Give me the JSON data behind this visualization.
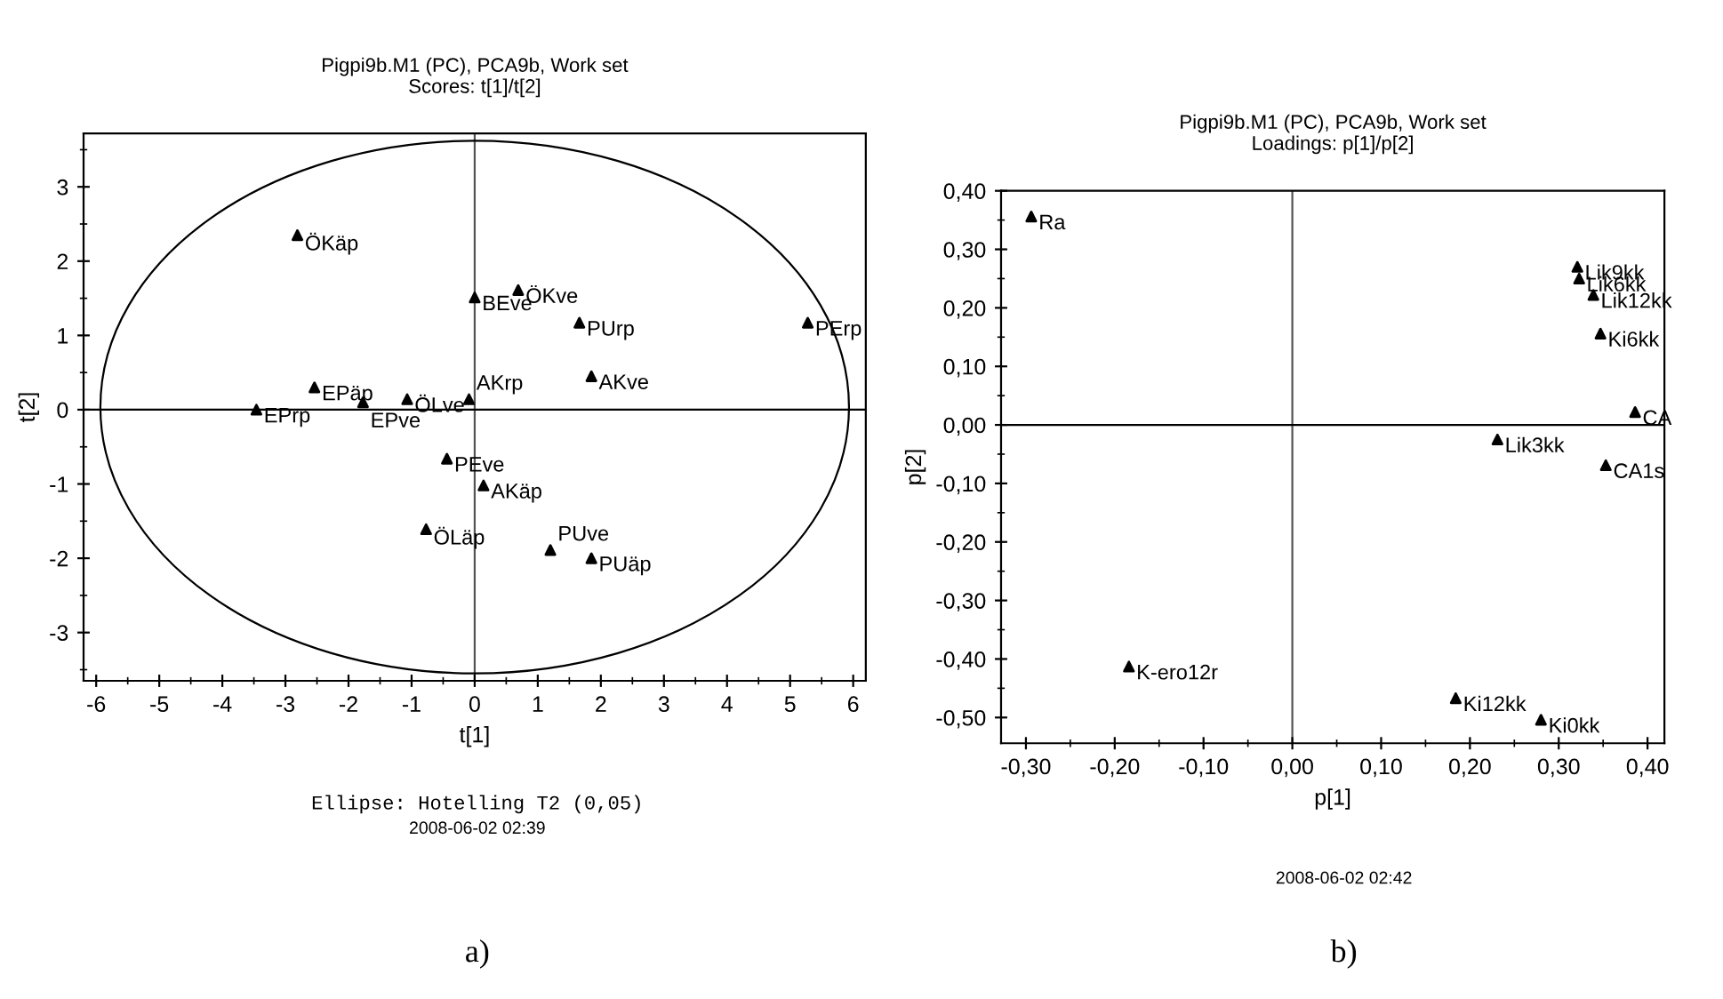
{
  "chart_data": [
    {
      "type": "scatter",
      "title": "Pigpi9b.M1 (PC), PCA9b, Work set",
      "subtitle": "Scores: t[1]/t[2]",
      "xlabel": "t[1]",
      "ylabel": "t[2]",
      "xlim": [
        -6.2,
        6.2
      ],
      "ylim": [
        -3.65,
        3.72
      ],
      "xticks": [
        -6,
        -5,
        -4,
        -3,
        -2,
        -1,
        0,
        1,
        2,
        3,
        4,
        5,
        6
      ],
      "yticks": [
        -3,
        -2,
        -1,
        0,
        1,
        2,
        3
      ],
      "grid": false,
      "marker": "triangle",
      "ref_lines": [
        {
          "axis": "x",
          "value": 0,
          "color": "#555555"
        },
        {
          "axis": "y",
          "value": 0,
          "color": "#000000"
        }
      ],
      "series": [
        {
          "type": "scatter",
          "color": "#000000",
          "x": [
            -2.81,
            0,
            0.69,
            1.66,
            5.28,
            1.85,
            -2.54,
            -3.46,
            -1.77,
            -1.07,
            -0.09,
            -0.44,
            0.14,
            -0.77,
            1.2,
            1.85
          ],
          "values": [
            2.35,
            1.51,
            1.61,
            1.17,
            1.17,
            0.45,
            0.3,
            0.0,
            0.1,
            0.14,
            0.14,
            -0.66,
            -1.02,
            -1.61,
            -1.89,
            -2.0
          ]
        }
      ],
      "annotations": [
        {
          "text": "ÖKäp",
          "x": -2.81,
          "y": 2.35
        },
        {
          "text": "BEve",
          "x": 0,
          "y": 1.51
        },
        {
          "text": "ÖKve",
          "x": 0.69,
          "y": 1.61
        },
        {
          "text": "PUrp",
          "x": 1.66,
          "y": 1.17
        },
        {
          "text": "PErp",
          "x": 5.28,
          "y": 1.17
        },
        {
          "text": "AKve",
          "x": 1.85,
          "y": 0.45
        },
        {
          "text": "EPäp",
          "x": -2.54,
          "y": 0.3
        },
        {
          "text": "EPrp",
          "x": -3.46,
          "y": 0.0
        },
        {
          "text": "EPve",
          "x": -1.77,
          "y": 0.1
        },
        {
          "text": "ÖLve",
          "x": -1.07,
          "y": 0.14
        },
        {
          "text": "AKrp",
          "x": -0.09,
          "y": 0.14
        },
        {
          "text": "PEve",
          "x": -0.44,
          "y": -0.66
        },
        {
          "text": "AKäp",
          "x": 0.14,
          "y": -1.02
        },
        {
          "text": "ÖLäp",
          "x": -0.77,
          "y": -1.61
        },
        {
          "text": "PUve",
          "x": 1.2,
          "y": -1.89
        },
        {
          "text": "PUäp",
          "x": 1.85,
          "y": -2.0
        },
        "Ellipse: Hotelling T2 (0,05)",
        "2008-06-02 02:39",
        "a)"
      ]
    },
    {
      "type": "scatter",
      "title": "Pigpi9b.M1 (PC), PCA9b, Work set",
      "subtitle": "Loadings: p[1]/p[2]",
      "xlabel": "p[1]",
      "ylabel": "p[2]",
      "xlim": [
        -0.328,
        0.419
      ],
      "ylim": [
        -0.544,
        0.4
      ],
      "xticks": [
        {
          "value": -0.3,
          "label": "-0,30"
        },
        {
          "value": -0.2,
          "label": "-0,20"
        },
        {
          "value": -0.1,
          "label": "-0,10"
        },
        {
          "value": 0,
          "label": "0,00"
        },
        {
          "value": 0.1,
          "label": "0,10"
        },
        {
          "value": 0.2,
          "label": "0,20"
        },
        {
          "value": 0.3,
          "label": "0,30"
        },
        {
          "value": 0.4,
          "label": "0,40"
        }
      ],
      "yticks": [
        {
          "value": -0.5,
          "label": "-0,50"
        },
        {
          "value": -0.4,
          "label": "-0,40"
        },
        {
          "value": -0.3,
          "label": "-0,30"
        },
        {
          "value": -0.2,
          "label": "-0,20"
        },
        {
          "value": -0.1,
          "label": "-0,10"
        },
        {
          "value": 0,
          "label": "0,00"
        },
        {
          "value": 0.1,
          "label": "0,10"
        },
        {
          "value": 0.2,
          "label": "0,20"
        },
        {
          "value": 0.3,
          "label": "0,30"
        },
        {
          "value": 0.4,
          "label": "0,40"
        }
      ],
      "grid": false,
      "marker": "triangle",
      "ref_lines": [
        {
          "axis": "x",
          "value": 0,
          "color": "#555555"
        },
        {
          "axis": "y",
          "value": 0,
          "color": "#000000"
        }
      ],
      "series": [
        {
          "type": "scatter",
          "color": "#000000",
          "x": [
            -0.294,
            0.321,
            0.323,
            0.339,
            0.347,
            0.386,
            0.231,
            0.353,
            -0.184,
            0.184,
            0.28
          ],
          "values": [
            0.356,
            0.27,
            0.25,
            0.222,
            0.156,
            0.022,
            -0.025,
            -0.069,
            -0.413,
            -0.467,
            -0.504
          ]
        }
      ],
      "annotations": [
        {
          "text": "Ra",
          "x": -0.294,
          "y": 0.356
        },
        {
          "text": "Lik9kk",
          "x": 0.321,
          "y": 0.27
        },
        {
          "text": "Lik6kk",
          "x": 0.323,
          "y": 0.25
        },
        {
          "text": "Lik12kk",
          "x": 0.339,
          "y": 0.222
        },
        {
          "text": "Ki6kk",
          "x": 0.347,
          "y": 0.156
        },
        {
          "text": "CA",
          "x": 0.386,
          "y": 0.022
        },
        {
          "text": "Lik3kk",
          "x": 0.231,
          "y": -0.025
        },
        {
          "text": "CA1s",
          "x": 0.353,
          "y": -0.069
        },
        {
          "text": "K-ero12r",
          "x": -0.184,
          "y": -0.413
        },
        {
          "text": "Ki12kk",
          "x": 0.184,
          "y": -0.467
        },
        {
          "text": "Ki0kk",
          "x": 0.28,
          "y": -0.504
        },
        "2008-06-02 02:42",
        "b)"
      ]
    }
  ]
}
